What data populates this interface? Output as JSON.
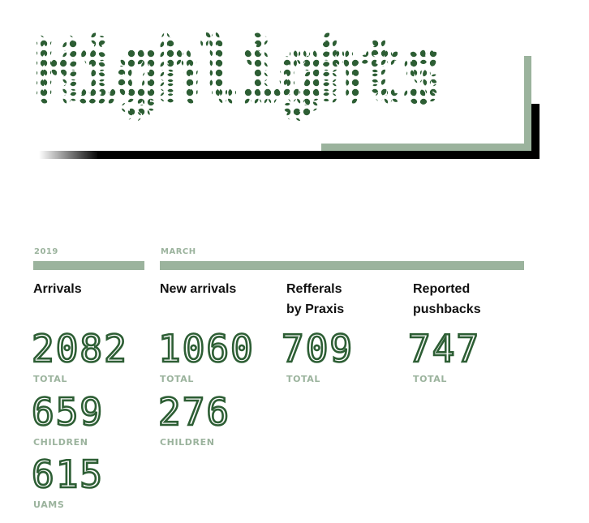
{
  "page_title": "Highlights",
  "colors": {
    "dot_green": "#2d5e34",
    "sage": "#9bb39d",
    "black": "#000000"
  },
  "periods": {
    "year": "2019",
    "month": "MARCH"
  },
  "columns": [
    {
      "heading": "Arrivals",
      "stats": [
        {
          "value": "2082",
          "label": "TOTAL"
        },
        {
          "value": "659",
          "label": "CHILDREN"
        },
        {
          "value": "615",
          "label": "UAMS"
        }
      ]
    },
    {
      "heading": "New arrivals",
      "stats": [
        {
          "value": "1060",
          "label": "TOTAL"
        },
        {
          "value": "276",
          "label": "CHILDREN"
        }
      ]
    },
    {
      "heading": "Refferals\nby Praxis",
      "stats": [
        {
          "value": "709",
          "label": "TOTAL"
        }
      ]
    },
    {
      "heading": "Reported\npushbacks",
      "stats": [
        {
          "value": "747",
          "label": "TOTAL"
        }
      ]
    }
  ]
}
